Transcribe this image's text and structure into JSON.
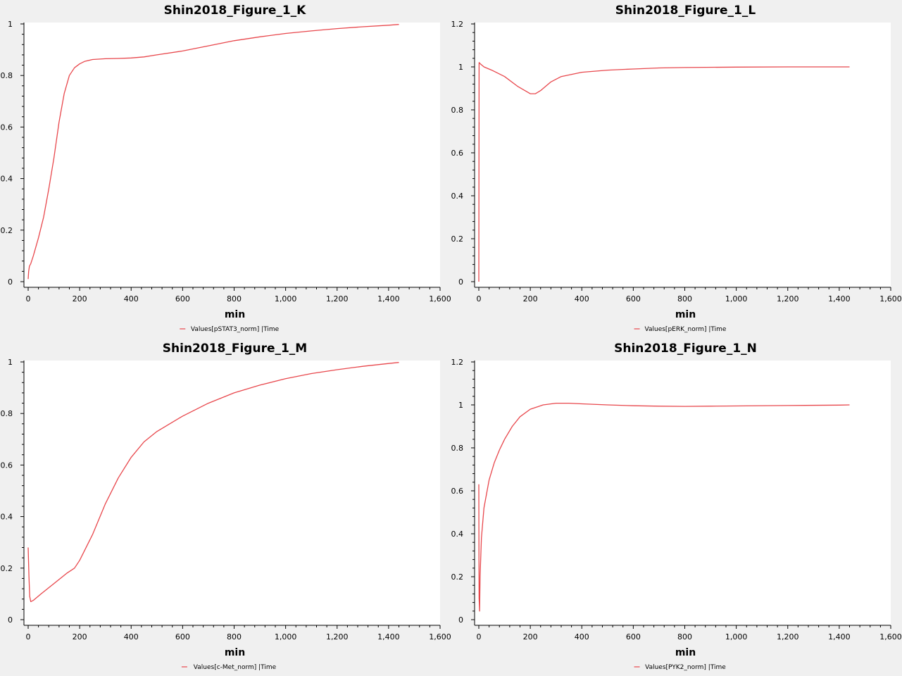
{
  "chart_data": [
    {
      "type": "line",
      "title": "Shin2018_Figure_1_K",
      "xlabel": "min",
      "ylabel": "",
      "xlim": [
        0,
        1600
      ],
      "ylim": [
        0,
        1
      ],
      "xticks": [
        "0",
        "200",
        "400",
        "600",
        "800",
        "1,000",
        "1,200",
        "1,400",
        "1,600"
      ],
      "yticks": [
        "0",
        "0.2",
        "0.4",
        "0.6",
        "0.8",
        "1"
      ],
      "grid": false,
      "legend_position": "bottom",
      "series": [
        {
          "name": "Values[pSTAT3_norm] |Time",
          "color": "#e8474c",
          "x": [
            0,
            2,
            5,
            10,
            20,
            40,
            60,
            80,
            100,
            120,
            140,
            160,
            180,
            200,
            220,
            250,
            300,
            350,
            400,
            450,
            500,
            600,
            700,
            800,
            900,
            1000,
            1100,
            1200,
            1300,
            1400,
            1440
          ],
          "y": [
            0.01,
            0.04,
            0.06,
            0.07,
            0.1,
            0.17,
            0.25,
            0.36,
            0.48,
            0.62,
            0.73,
            0.8,
            0.83,
            0.845,
            0.855,
            0.862,
            0.865,
            0.866,
            0.868,
            0.872,
            0.88,
            0.895,
            0.915,
            0.935,
            0.95,
            0.963,
            0.973,
            0.982,
            0.989,
            0.995,
            0.998
          ]
        }
      ]
    },
    {
      "type": "line",
      "title": "Shin2018_Figure_1_L",
      "xlabel": "min",
      "ylabel": "",
      "xlim": [
        0,
        1600
      ],
      "ylim": [
        0,
        1.2
      ],
      "xticks": [
        "0",
        "200",
        "400",
        "600",
        "800",
        "1,000",
        "1,200",
        "1,400",
        "1,600"
      ],
      "yticks": [
        "0",
        "0.2",
        "0.4",
        "0.6",
        "0.8",
        "1",
        "1.2"
      ],
      "grid": false,
      "legend_position": "bottom",
      "series": [
        {
          "name": "Values[pERK_norm] |Time",
          "color": "#e8474c",
          "x": [
            0,
            1,
            2,
            5,
            20,
            50,
            100,
            150,
            200,
            220,
            240,
            280,
            320,
            400,
            500,
            600,
            700,
            800,
            1000,
            1200,
            1440
          ],
          "y": [
            0.0,
            1.02,
            1.02,
            1.015,
            1.0,
            0.985,
            0.955,
            0.91,
            0.875,
            0.875,
            0.89,
            0.93,
            0.955,
            0.975,
            0.985,
            0.99,
            0.995,
            0.997,
            0.999,
            1.0,
            1.0
          ]
        }
      ]
    },
    {
      "type": "line",
      "title": "Shin2018_Figure_1_M",
      "xlabel": "min",
      "ylabel": "",
      "xlim": [
        0,
        1600
      ],
      "ylim": [
        0,
        1
      ],
      "xticks": [
        "0",
        "200",
        "400",
        "600",
        "800",
        "1,000",
        "1,200",
        "1,400",
        "1,600"
      ],
      "yticks": [
        "0",
        "0.2",
        "0.4",
        "0.6",
        "0.8",
        "1"
      ],
      "grid": false,
      "legend_position": "bottom",
      "series": [
        {
          "name": "Values[c-Met_norm] |Time",
          "color": "#e8474c",
          "x": [
            0,
            3,
            6,
            10,
            20,
            50,
            100,
            150,
            180,
            200,
            250,
            300,
            350,
            400,
            450,
            500,
            600,
            700,
            800,
            900,
            1000,
            1100,
            1200,
            1300,
            1400,
            1440
          ],
          "y": [
            0.28,
            0.17,
            0.09,
            0.07,
            0.075,
            0.1,
            0.14,
            0.18,
            0.2,
            0.23,
            0.33,
            0.45,
            0.55,
            0.63,
            0.69,
            0.73,
            0.79,
            0.84,
            0.88,
            0.91,
            0.935,
            0.955,
            0.97,
            0.983,
            0.994,
            0.998
          ]
        }
      ]
    },
    {
      "type": "line",
      "title": "Shin2018_Figure_1_N",
      "xlabel": "min",
      "ylabel": "",
      "xlim": [
        0,
        1600
      ],
      "ylim": [
        0,
        1.2
      ],
      "xticks": [
        "0",
        "200",
        "400",
        "600",
        "800",
        "1,000",
        "1,200",
        "1,400",
        "1,600"
      ],
      "yticks": [
        "0",
        "0.2",
        "0.4",
        "0.6",
        "0.8",
        "1",
        "1.2"
      ],
      "grid": false,
      "legend_position": "bottom",
      "series": [
        {
          "name": "Values[PYK2_norm] |Time",
          "color": "#e8474c",
          "x": [
            0,
            0.5,
            1,
            3,
            5,
            10,
            20,
            40,
            60,
            80,
            100,
            130,
            160,
            200,
            250,
            300,
            350,
            400,
            500,
            600,
            700,
            800,
            900,
            1000,
            1200,
            1400,
            1440
          ],
          "y": [
            0.63,
            0.3,
            0.1,
            0.04,
            0.2,
            0.38,
            0.52,
            0.65,
            0.73,
            0.79,
            0.84,
            0.9,
            0.945,
            0.98,
            1.0,
            1.008,
            1.008,
            1.005,
            1.0,
            0.996,
            0.994,
            0.993,
            0.994,
            0.995,
            0.997,
            0.999,
            1.0
          ]
        }
      ]
    }
  ]
}
